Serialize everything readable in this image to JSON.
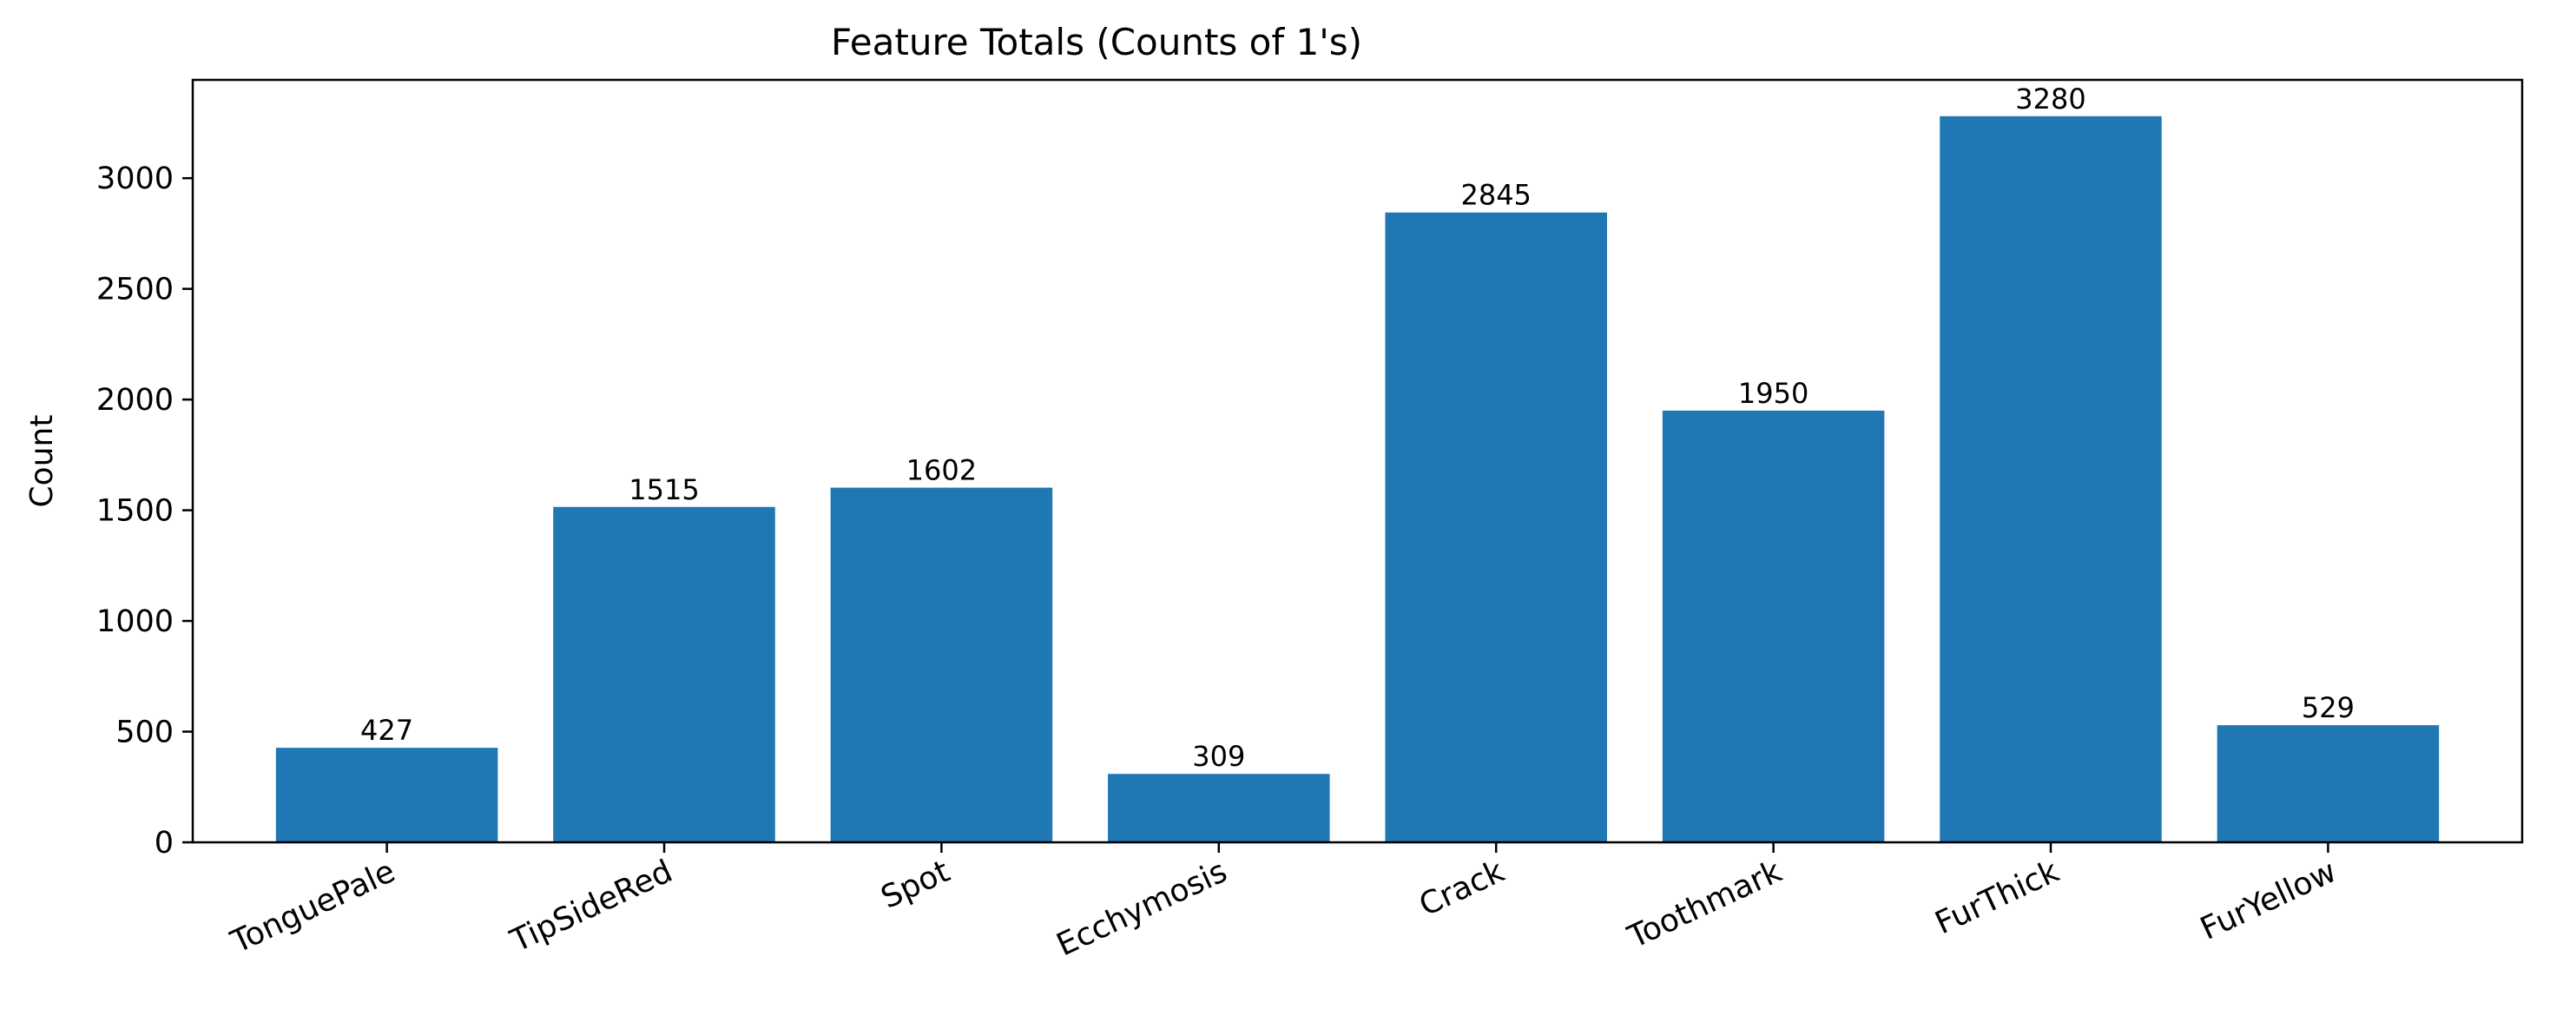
{
  "chart_data": {
    "type": "bar",
    "title": "Feature Totals (Counts of 1's)",
    "xlabel": "",
    "ylabel": "Count",
    "categories": [
      "TonguePale",
      "TipSideRed",
      "Spot",
      "Ecchymosis",
      "Crack",
      "Toothmark",
      "FurThick",
      "FurYellow"
    ],
    "values": [
      427,
      1515,
      1602,
      309,
      2845,
      1950,
      3280,
      529
    ],
    "ylim": [
      0,
      3444
    ],
    "yticks": [
      0,
      500,
      1000,
      1500,
      2000,
      2500,
      3000
    ],
    "bar_color": "#1f77b4",
    "grid": false,
    "legend": "none"
  }
}
